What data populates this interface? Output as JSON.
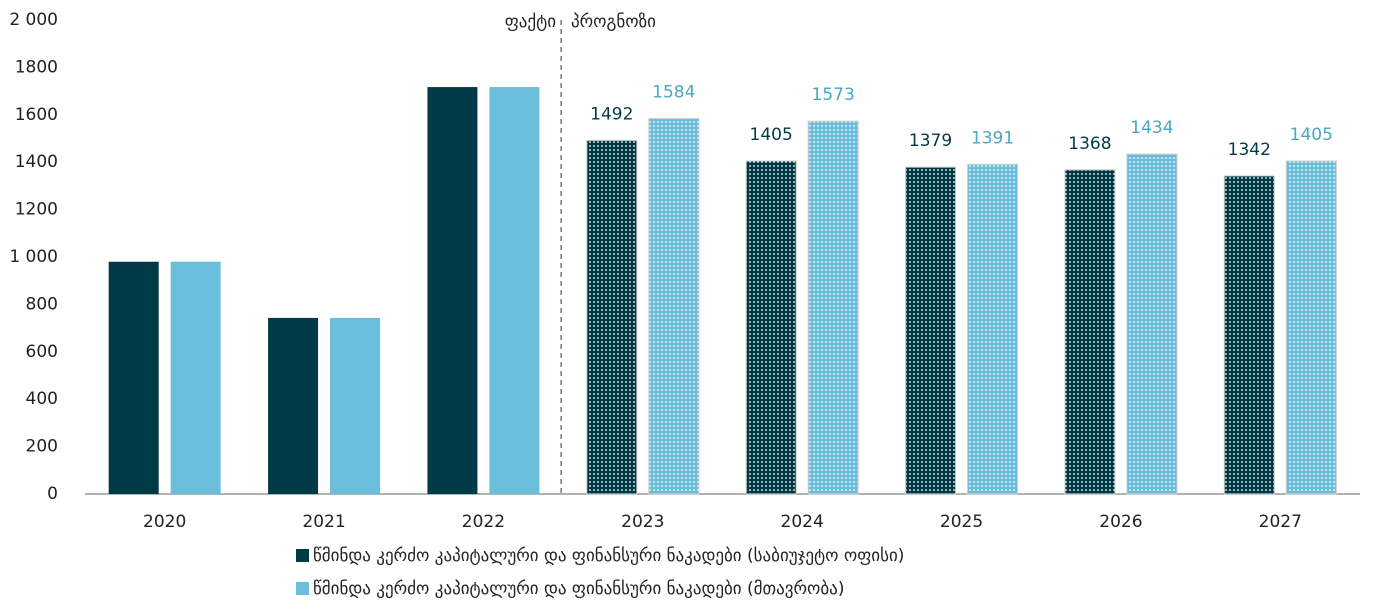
{
  "chart_data": {
    "type": "bar",
    "categories": [
      "2020",
      "2021",
      "2022",
      "2023",
      "2024",
      "2025",
      "2026",
      "2027"
    ],
    "series": [
      {
        "name": "წმინდა კერძო კაპიტალური და ფინანსური ნაკადები (საბიუჯეტო ოფისი)",
        "color": "#003a47",
        "label_color": "#003a47",
        "values": [
          980,
          743,
          1717,
          1492,
          1405,
          1379,
          1368,
          1342
        ]
      },
      {
        "name": "წმინდა კერძო კაპიტალური და ფინანსური ნაკადები (მთავრობა)",
        "color": "#6bbedb",
        "label_color": "#4aa6c4",
        "values": [
          980,
          743,
          1717,
          1584,
          1573,
          1391,
          1434,
          1405
        ]
      }
    ],
    "ylim": [
      0,
      2000
    ],
    "yticks": [
      0,
      200,
      400,
      600,
      800,
      {
        "value": 1000,
        "label": "1 000"
      },
      1200,
      1400,
      1600,
      1800,
      {
        "value": 2000,
        "label": "2 000"
      }
    ],
    "grid": false,
    "forecast_start": "2023",
    "annotations": {
      "actual": "ფაქტი",
      "forecast": "პროგნოზი"
    },
    "legend": "bottom"
  }
}
